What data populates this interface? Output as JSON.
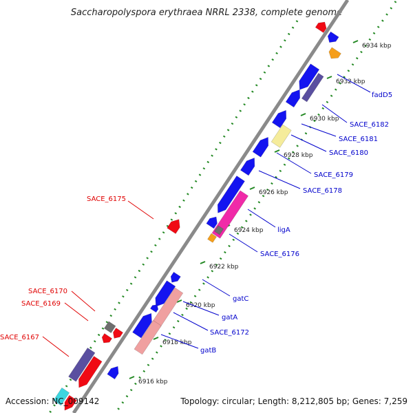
{
  "title": "Saccharopolyspora erythraea NRRL 2338, complete genome",
  "footer": {
    "accession": "Accession: NC_009142",
    "summary": "Topology: circular; Length: 8,212,805 bp; Genes: 7,259"
  },
  "ticks": [
    "6916 kbp",
    "6918 kbp",
    "6920 kbp",
    "6922 kbp",
    "6924 kbp",
    "6926 kbp",
    "6928 kbp",
    "6930 kbp",
    "6932 kbp",
    "6934 kbp"
  ],
  "labels_reverse": [
    "SACE_6175",
    "SACE_6170",
    "SACE_6169",
    "SACE_6167"
  ],
  "labels_forward": [
    "fadD5",
    "SACE_6182",
    "SACE_6181",
    "SACE_6180",
    "SACE_6179",
    "SACE_6178",
    "ligA",
    "SACE_6176",
    "gatC",
    "gatA",
    "SACE_6172",
    "gatB"
  ],
  "colors": {
    "backbone": "#8a8a8a",
    "forward_cds": "#1414f0",
    "reverse_cds": "#f00a14",
    "dark_cds": "#5a4fa0",
    "pink_cds": "#f02aa8",
    "salmon_cds": "#f0a0a0",
    "yellow_cds": "#f5ec9b",
    "orange_cds": "#f59e1a",
    "gray_cds": "#6e6e6e",
    "cyan_cds": "#3cd6e0",
    "gc_ticks": "#228822",
    "forward_label": "#0000cc",
    "reverse_label": "#e00000"
  }
}
